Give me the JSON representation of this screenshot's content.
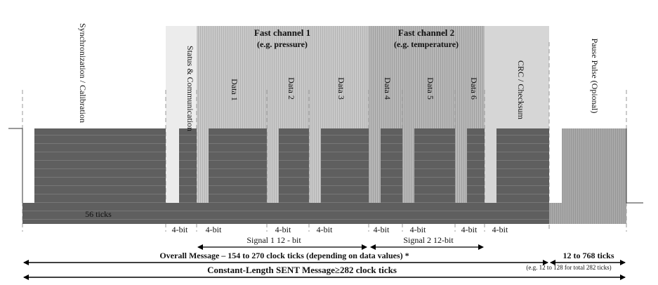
{
  "regions": {
    "fast_channel_1": {
      "title": "Fast channel 1",
      "subtitle": "(e.g. pressure)"
    },
    "fast_channel_2": {
      "title": "Fast channel 2",
      "subtitle": "(e.g. temperature)"
    }
  },
  "nibbles": {
    "sync": "Synchronization / Calibration",
    "status": "Status & Communication",
    "data1": "Data 1",
    "data2": "Data 2",
    "data3": "Data 3",
    "data4": "Data 4",
    "data5": "Data 5",
    "data6": "Data 6",
    "crc": "CRC / Checksum",
    "pause": "Pause Pulse (Opional)"
  },
  "sync_ticks": "56 ticks",
  "bit_label": "4-bit",
  "signal1": "Signal 1 12 - bit",
  "signal2": "Signal 2 12-bit",
  "overall_message": "Overall Message –  154 to 270 clock ticks (depending on data values) *",
  "pause_range": "12 to 768 ticks",
  "pause_note": "(e.g. 12 to 128 for total 282 ticks)",
  "constant_length": "Constant-Length SENT Message≥282 clock ticks"
}
